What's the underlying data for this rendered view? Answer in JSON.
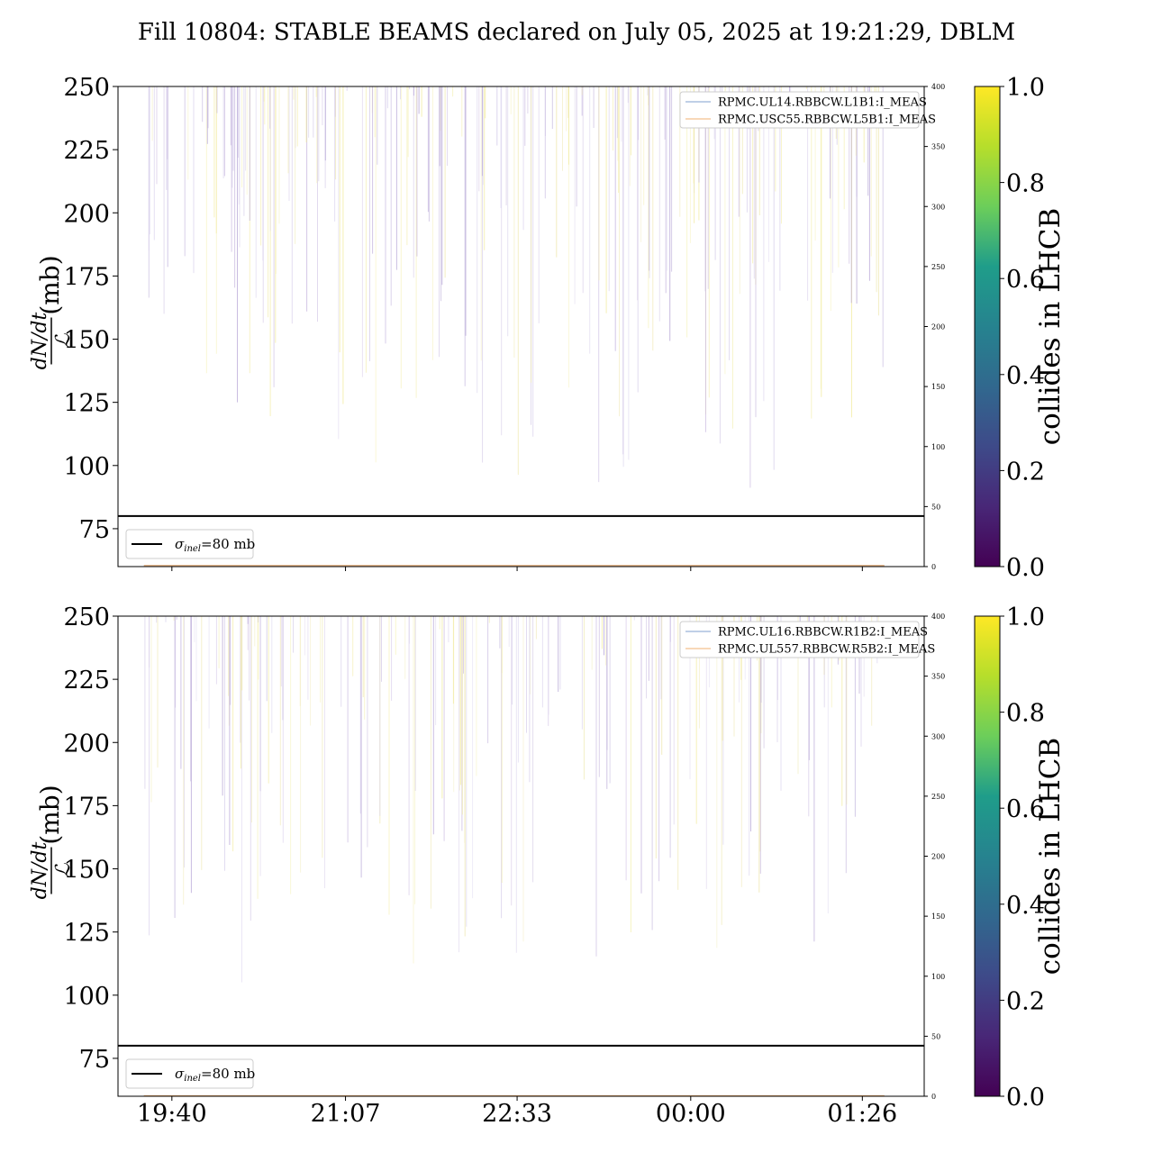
{
  "title": "Fill 10804: STABLE BEAMS declared on July 05, 2025 at 19:21:29, DBLM",
  "time_ticks": [
    "19:40",
    "21:07",
    "22:33",
    "00:00",
    "01:26"
  ],
  "threshold": {
    "value": 80,
    "label": "σinel=80 mb",
    "label_sym": "σ",
    "label_sub": "inel",
    "label_rest": "=80 mb"
  },
  "ylabel": {
    "num": "dN/dt",
    "den": "ℒ",
    "unit": "(mb)"
  },
  "colorbar": {
    "label": "collides in LHCB",
    "ticks": [
      "0.0",
      "0.2",
      "0.4",
      "0.6",
      "0.8",
      "1.0"
    ],
    "colormap": "viridis",
    "stops": [
      "#440154",
      "#482777",
      "#3e4a89",
      "#31688e",
      "#26838f",
      "#1f9d8a",
      "#6cce5a",
      "#b6de2b",
      "#fee825"
    ]
  },
  "colors": {
    "series_a": "#7f9fcf",
    "series_b": "#f0b070",
    "threshold": "#000000"
  },
  "chart_data": [
    {
      "type": "line",
      "panel": "top",
      "ylim": [
        60,
        250
      ],
      "yticks": [
        75,
        100,
        125,
        150,
        175,
        200,
        225,
        250
      ],
      "y2lim": [
        0,
        400
      ],
      "y2ticks": [
        0,
        50,
        100,
        150,
        200,
        250,
        300,
        350,
        400
      ],
      "x_range": [
        "19:13",
        "01:57"
      ],
      "spike_ranges": [
        [
          88,
          250
        ]
      ],
      "series": [
        {
          "name": "RPMC.UL14.RBBCW.L1B1:I_MEAS",
          "axis": "right",
          "approx_value": 0.5
        },
        {
          "name": "RPMC.USC55.RBBCW.L5B1:I_MEAS",
          "axis": "right",
          "approx_value": 0.5
        }
      ],
      "legend_position": "upper right",
      "threshold_legend_position": "lower left"
    },
    {
      "type": "line",
      "panel": "bottom",
      "ylim": [
        60,
        250
      ],
      "yticks": [
        75,
        100,
        125,
        150,
        175,
        200,
        225,
        250
      ],
      "y2lim": [
        0,
        400
      ],
      "y2ticks": [
        0,
        50,
        100,
        150,
        200,
        250,
        300,
        350,
        400
      ],
      "x_range": [
        "19:13",
        "01:57"
      ],
      "spike_ranges": [
        [
          90,
          250
        ]
      ],
      "series": [
        {
          "name": "RPMC.UL16.RBBCW.R1B2:I_MEAS",
          "axis": "right"
        },
        {
          "name": "RPMC.UL557.RBBCW.R5B2:I_MEAS",
          "axis": "right"
        }
      ],
      "legend_position": "upper right",
      "threshold_legend_position": "lower left"
    }
  ]
}
